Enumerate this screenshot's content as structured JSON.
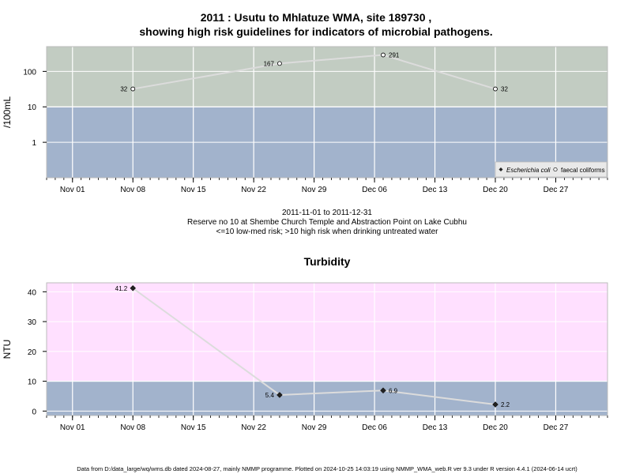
{
  "title_line1": "2011 : Usutu to Mhlatuze WMA, site 189730 ,",
  "title_line2": "showing high risk guidelines for indicators of microbial pathogens.",
  "caption_line1": "2011-11-01 to 2011-12-31",
  "caption_line2": "Reserve no 10 at Shembe Church Temple and Abstraction Point on Lake Cubhu",
  "caption_line3": "<=10 low-med risk; >10 high risk when drinking untreated water",
  "footer": "Data from D:/data_large/wq/wms.db dated 2024-08-27, mainly NMMP programme. Plotted on 2024-10-25 14:03:19 using NMMP_WMA_web.R ver 9.3 under R version 4.4.1 (2024-06-14 ucrt)",
  "colors": {
    "high_risk_band": "#c2ccc2",
    "low_risk_band": "#a2b3cc",
    "turbidity_high_band": "#ffe0ff",
    "line": "#dcdcdc",
    "grid": "#ffffff"
  },
  "chart_data": [
    {
      "type": "line",
      "ylabel": "/100mL",
      "log_y": true,
      "ylim": [
        0.1,
        500
      ],
      "y_ticks": [
        1,
        10,
        100
      ],
      "y_tick_labels": [
        "1",
        "10",
        "100"
      ],
      "threshold": 10,
      "x_ticks": [
        "Nov 01",
        "Nov 08",
        "Nov 15",
        "Nov 22",
        "Nov 29",
        "Dec 06",
        "Dec 13",
        "Dec 20",
        "Dec 27"
      ],
      "x_tick_dates": [
        "2011-11-01",
        "2011-11-08",
        "2011-11-15",
        "2011-11-22",
        "2011-11-29",
        "2011-12-06",
        "2011-12-13",
        "2011-12-20",
        "2011-12-27"
      ],
      "xlim": [
        "2011-10-29",
        "2012-01-02"
      ],
      "legend_position": "bottom-right",
      "legend": [
        "Escherichia coli",
        "faecal coliforms"
      ],
      "series": [
        {
          "name": "faecal coliforms",
          "marker": "open-circle",
          "points": [
            {
              "x": "2011-11-08",
              "y": 32,
              "label": "32",
              "label_side": "left"
            },
            {
              "x": "2011-11-25",
              "y": 167,
              "label": "167",
              "label_side": "left"
            },
            {
              "x": "2011-12-07",
              "y": 291,
              "label": "291",
              "label_side": "right"
            },
            {
              "x": "2011-12-20",
              "y": 32,
              "label": "32",
              "label_side": "right"
            }
          ]
        }
      ]
    },
    {
      "type": "line",
      "title": "Turbidity",
      "ylabel": "NTU",
      "log_y": false,
      "ylim": [
        -1.5,
        43
      ],
      "y_ticks": [
        0,
        10,
        20,
        30,
        40
      ],
      "y_tick_labels": [
        "0",
        "10",
        "20",
        "30",
        "40"
      ],
      "threshold": 10,
      "x_ticks": [
        "Nov 01",
        "Nov 08",
        "Nov 15",
        "Nov 22",
        "Nov 29",
        "Dec 06",
        "Dec 13",
        "Dec 20",
        "Dec 27"
      ],
      "x_tick_dates": [
        "2011-11-01",
        "2011-11-08",
        "2011-11-15",
        "2011-11-22",
        "2011-11-29",
        "2011-12-06",
        "2011-12-13",
        "2011-12-20",
        "2011-12-27"
      ],
      "xlim": [
        "2011-10-29",
        "2012-01-02"
      ],
      "series": [
        {
          "name": "",
          "marker": "filled-diamond",
          "points": [
            {
              "x": "2011-11-08",
              "y": 41.2,
              "label": "41.2",
              "label_side": "left"
            },
            {
              "x": "2011-11-25",
              "y": 5.4,
              "label": "5.4",
              "label_side": "left"
            },
            {
              "x": "2011-12-07",
              "y": 6.9,
              "label": "6.9",
              "label_side": "right"
            },
            {
              "x": "2011-12-20",
              "y": 2.2,
              "label": "2.2",
              "label_side": "right"
            }
          ]
        }
      ]
    }
  ]
}
